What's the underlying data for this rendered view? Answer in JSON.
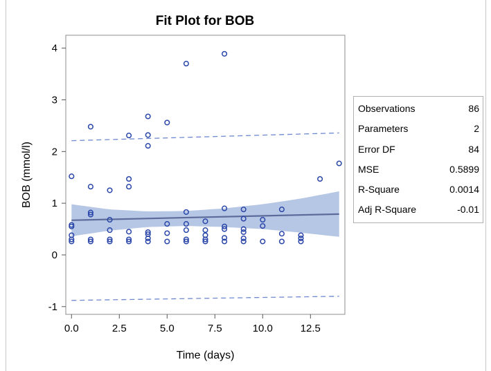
{
  "chart_data": {
    "type": "scatter",
    "title": "Fit Plot for BOB",
    "xlabel": "Time (days)",
    "ylabel": "BOB (mmol/l)",
    "xlim": [
      -0.3,
      14.3
    ],
    "ylim": [
      -1.15,
      4.25
    ],
    "xticks": [
      0,
      2.5,
      5,
      7.5,
      10,
      12.5
    ],
    "xtick_labels": [
      "0.0",
      "2.5",
      "5.0",
      "7.5",
      "10.0",
      "12.5"
    ],
    "yticks": [
      -1,
      0,
      1,
      2,
      3,
      4
    ],
    "ytick_labels": [
      "-1",
      "0",
      "1",
      "2",
      "3",
      "4"
    ],
    "grid": false,
    "points": [
      [
        0,
        1.52
      ],
      [
        0,
        0.58
      ],
      [
        0,
        0.55
      ],
      [
        0,
        0.38
      ],
      [
        0,
        0.3
      ],
      [
        0,
        0.26
      ],
      [
        1,
        2.48
      ],
      [
        1,
        1.32
      ],
      [
        1,
        0.82
      ],
      [
        1,
        0.78
      ],
      [
        1,
        0.3
      ],
      [
        1,
        0.26
      ],
      [
        2,
        1.25
      ],
      [
        2,
        0.68
      ],
      [
        2,
        0.48
      ],
      [
        2,
        0.3
      ],
      [
        2,
        0.26
      ],
      [
        3,
        2.31
      ],
      [
        3,
        1.47
      ],
      [
        3,
        1.32
      ],
      [
        3,
        0.45
      ],
      [
        3,
        0.3
      ],
      [
        3,
        0.26
      ],
      [
        4,
        2.68
      ],
      [
        4,
        2.32
      ],
      [
        4,
        2.11
      ],
      [
        4,
        0.44
      ],
      [
        4,
        0.4
      ],
      [
        4,
        0.32
      ],
      [
        4,
        0.26
      ],
      [
        5,
        2.56
      ],
      [
        5,
        0.6
      ],
      [
        5,
        0.42
      ],
      [
        5,
        0.26
      ],
      [
        6,
        3.7
      ],
      [
        6,
        0.83
      ],
      [
        6,
        0.6
      ],
      [
        6,
        0.48
      ],
      [
        6,
        0.3
      ],
      [
        6,
        0.26
      ],
      [
        7,
        0.65
      ],
      [
        7,
        0.48
      ],
      [
        7,
        0.38
      ],
      [
        7,
        0.3
      ],
      [
        7,
        0.26
      ],
      [
        8,
        3.89
      ],
      [
        8,
        0.9
      ],
      [
        8,
        0.55
      ],
      [
        8,
        0.5
      ],
      [
        8,
        0.33
      ],
      [
        8,
        0.26
      ],
      [
        9,
        0.88
      ],
      [
        9,
        0.7
      ],
      [
        9,
        0.5
      ],
      [
        9,
        0.44
      ],
      [
        9,
        0.32
      ],
      [
        9,
        0.26
      ],
      [
        10,
        0.68
      ],
      [
        10,
        0.56
      ],
      [
        10,
        0.26
      ],
      [
        11,
        0.88
      ],
      [
        11,
        0.41
      ],
      [
        11,
        0.26
      ],
      [
        12,
        0.38
      ],
      [
        12,
        0.32
      ],
      [
        12,
        0.26
      ],
      [
        13,
        1.47
      ],
      [
        14,
        1.77
      ]
    ],
    "fit_line": {
      "x": [
        0,
        14
      ],
      "y": [
        0.67,
        0.79
      ]
    },
    "confidence_band": {
      "x": [
        0,
        2,
        4,
        6,
        8,
        10,
        12,
        14
      ],
      "lower": [
        0.36,
        0.47,
        0.54,
        0.56,
        0.54,
        0.5,
        0.43,
        0.35
      ],
      "upper": [
        0.98,
        0.88,
        0.84,
        0.85,
        0.9,
        0.98,
        1.09,
        1.23
      ]
    },
    "prediction_band": {
      "x": [
        0,
        14
      ],
      "lower": [
        -0.88,
        -0.8
      ],
      "upper": [
        2.21,
        2.36
      ]
    },
    "colors": {
      "marker": "#2a46a8",
      "fit": "#5b6c9c",
      "confidence": "#a9bde0",
      "prediction": "#6e88d0"
    },
    "stats_legend": "right"
  },
  "stats": [
    {
      "label": "Observations",
      "value": "86"
    },
    {
      "label": "Parameters",
      "value": "2"
    },
    {
      "label": "Error DF",
      "value": "84"
    },
    {
      "label": "MSE",
      "value": "0.5899"
    },
    {
      "label": "R-Square",
      "value": "0.0014"
    },
    {
      "label": "Adj R-Square",
      "value": "-0.01"
    }
  ]
}
